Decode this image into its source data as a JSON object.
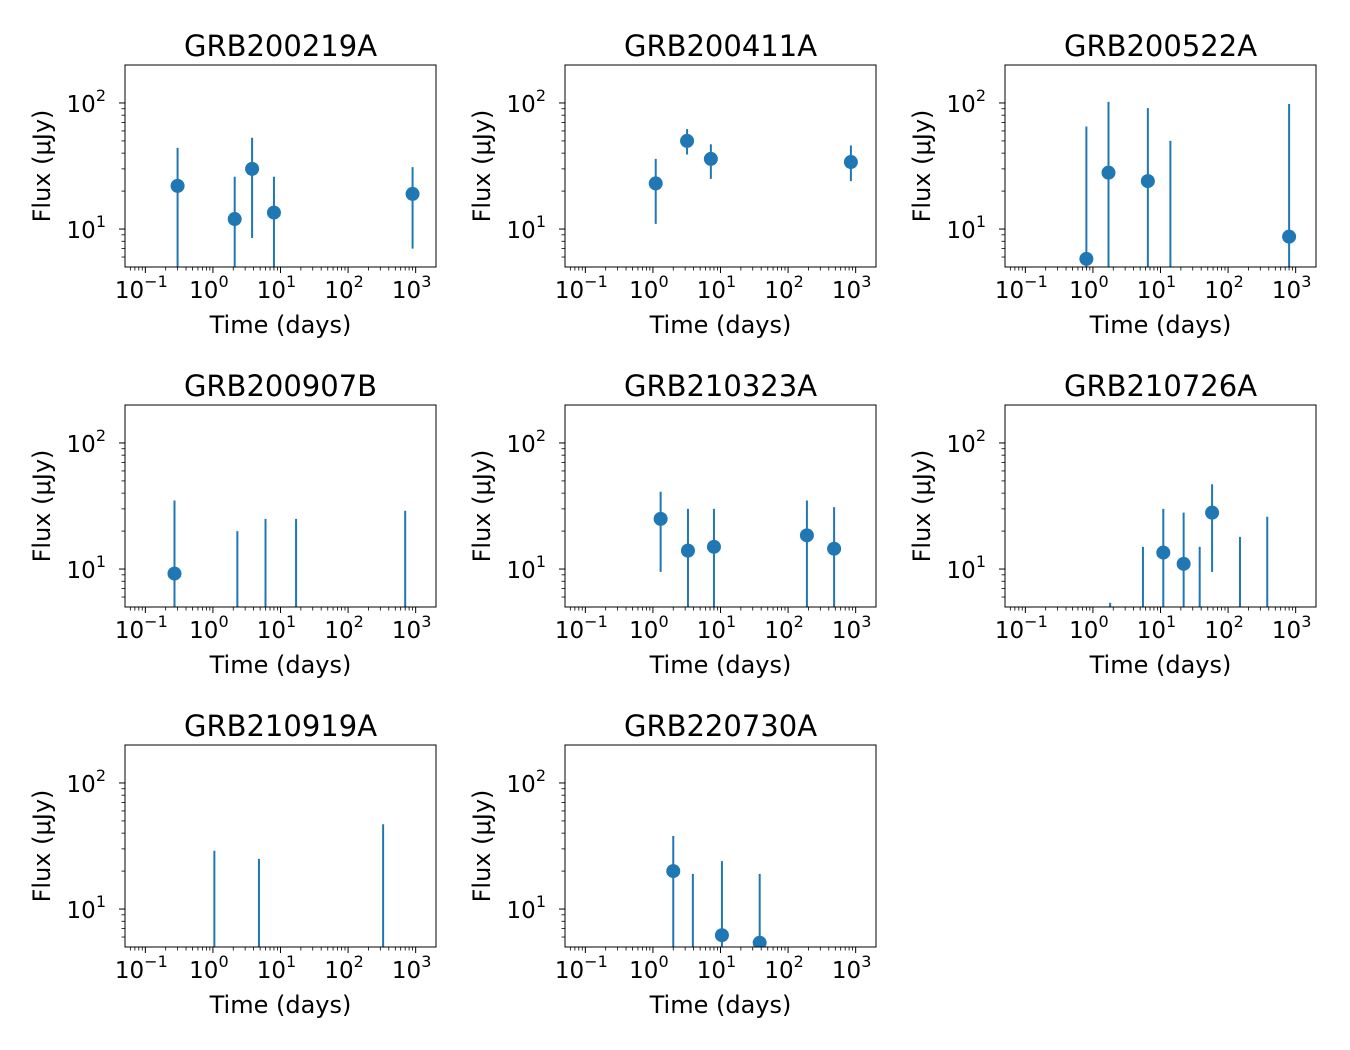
{
  "figure": {
    "series_color": "#1f77b4"
  },
  "chart_data": [
    {
      "type": "scatter",
      "title": "GRB200219A",
      "xlabel": "Time (days)",
      "ylabel": "Flux (μJy)",
      "xscale": "log",
      "yscale": "log",
      "xlim": [
        0.05,
        2000
      ],
      "ylim": [
        5,
        200
      ],
      "xticks": [
        {
          "base": "10",
          "exp": "−1"
        },
        {
          "base": "10",
          "exp": "0"
        },
        {
          "base": "10",
          "exp": "1"
        },
        {
          "base": "10",
          "exp": "2"
        },
        {
          "base": "10",
          "exp": "3"
        }
      ],
      "yticks": [
        {
          "base": "10",
          "exp": "1"
        },
        {
          "base": "10",
          "exp": "2"
        }
      ],
      "points": [
        {
          "x": 0.3,
          "y": 22,
          "ylo": 5,
          "yhi": 44
        },
        {
          "x": 2.1,
          "y": 12,
          "ylo": 5,
          "yhi": 26
        },
        {
          "x": 3.8,
          "y": 30,
          "ylo": 8.5,
          "yhi": 53
        },
        {
          "x": 8.0,
          "y": 13.5,
          "ylo": 5,
          "yhi": 26
        },
        {
          "x": 900,
          "y": 19,
          "ylo": 7,
          "yhi": 31
        }
      ]
    },
    {
      "type": "scatter",
      "title": "GRB200411A",
      "xlabel": "Time (days)",
      "ylabel": "Flux (μJy)",
      "xscale": "log",
      "yscale": "log",
      "xlim": [
        0.05,
        2000
      ],
      "ylim": [
        5,
        200
      ],
      "xticks": [
        {
          "base": "10",
          "exp": "−1"
        },
        {
          "base": "10",
          "exp": "0"
        },
        {
          "base": "10",
          "exp": "1"
        },
        {
          "base": "10",
          "exp": "2"
        },
        {
          "base": "10",
          "exp": "3"
        }
      ],
      "yticks": [
        {
          "base": "10",
          "exp": "1"
        },
        {
          "base": "10",
          "exp": "2"
        }
      ],
      "points": [
        {
          "x": 1.1,
          "y": 23,
          "ylo": 11,
          "yhi": 36
        },
        {
          "x": 3.2,
          "y": 50,
          "ylo": 39,
          "yhi": 62
        },
        {
          "x": 7.2,
          "y": 36,
          "ylo": 25,
          "yhi": 47
        },
        {
          "x": 850,
          "y": 34,
          "ylo": 24,
          "yhi": 46
        }
      ]
    },
    {
      "type": "scatter",
      "title": "GRB200522A",
      "xlabel": "Time (days)",
      "ylabel": "Flux (μJy)",
      "xscale": "log",
      "yscale": "log",
      "xlim": [
        0.05,
        2000
      ],
      "ylim": [
        5,
        200
      ],
      "xticks": [
        {
          "base": "10",
          "exp": "−1"
        },
        {
          "base": "10",
          "exp": "0"
        },
        {
          "base": "10",
          "exp": "1"
        },
        {
          "base": "10",
          "exp": "2"
        },
        {
          "base": "10",
          "exp": "3"
        }
      ],
      "yticks": [
        {
          "base": "10",
          "exp": "1"
        },
        {
          "base": "10",
          "exp": "2"
        }
      ],
      "points": [
        {
          "x": 0.8,
          "y": 5.8,
          "ylo": 5,
          "yhi": 65
        },
        {
          "x": 1.7,
          "y": 28,
          "ylo": 5,
          "yhi": 102
        },
        {
          "x": 6.5,
          "y": 24,
          "ylo": 5,
          "yhi": 91
        },
        {
          "x": 14,
          "ylo": 5,
          "yhi": 50
        },
        {
          "x": 800,
          "y": 8.7,
          "ylo": 5,
          "yhi": 98
        }
      ]
    },
    {
      "type": "scatter",
      "title": "GRB200907B",
      "xlabel": "Time (days)",
      "ylabel": "Flux (μJy)",
      "xscale": "log",
      "yscale": "log",
      "xlim": [
        0.05,
        2000
      ],
      "ylim": [
        5,
        200
      ],
      "xticks": [
        {
          "base": "10",
          "exp": "−1"
        },
        {
          "base": "10",
          "exp": "0"
        },
        {
          "base": "10",
          "exp": "1"
        },
        {
          "base": "10",
          "exp": "2"
        },
        {
          "base": "10",
          "exp": "3"
        }
      ],
      "yticks": [
        {
          "base": "10",
          "exp": "1"
        },
        {
          "base": "10",
          "exp": "2"
        }
      ],
      "points": [
        {
          "x": 0.27,
          "y": 9.2,
          "ylo": 5,
          "yhi": 35
        },
        {
          "x": 2.3,
          "ylo": 5,
          "yhi": 20
        },
        {
          "x": 6.0,
          "ylo": 5,
          "yhi": 25
        },
        {
          "x": 17,
          "ylo": 5,
          "yhi": 25
        },
        {
          "x": 700,
          "ylo": 5,
          "yhi": 29
        }
      ]
    },
    {
      "type": "scatter",
      "title": "GRB210323A",
      "xlabel": "Time (days)",
      "ylabel": "Flux (μJy)",
      "xscale": "log",
      "yscale": "log",
      "xlim": [
        0.05,
        2000
      ],
      "ylim": [
        5,
        200
      ],
      "xticks": [
        {
          "base": "10",
          "exp": "−1"
        },
        {
          "base": "10",
          "exp": "0"
        },
        {
          "base": "10",
          "exp": "1"
        },
        {
          "base": "10",
          "exp": "2"
        },
        {
          "base": "10",
          "exp": "3"
        }
      ],
      "yticks": [
        {
          "base": "10",
          "exp": "1"
        },
        {
          "base": "10",
          "exp": "2"
        }
      ],
      "points": [
        {
          "x": 1.3,
          "y": 25,
          "ylo": 9.5,
          "yhi": 41
        },
        {
          "x": 3.3,
          "y": 14,
          "ylo": 5,
          "yhi": 30
        },
        {
          "x": 8.0,
          "y": 15,
          "ylo": 5,
          "yhi": 30
        },
        {
          "x": 190,
          "y": 18.5,
          "ylo": 5,
          "yhi": 35
        },
        {
          "x": 480,
          "y": 14.5,
          "ylo": 5,
          "yhi": 31
        }
      ]
    },
    {
      "type": "scatter",
      "title": "GRB210726A",
      "xlabel": "Time (days)",
      "ylabel": "Flux (μJy)",
      "xscale": "log",
      "yscale": "log",
      "xlim": [
        0.05,
        2000
      ],
      "ylim": [
        5,
        200
      ],
      "xticks": [
        {
          "base": "10",
          "exp": "−1"
        },
        {
          "base": "10",
          "exp": "0"
        },
        {
          "base": "10",
          "exp": "1"
        },
        {
          "base": "10",
          "exp": "2"
        },
        {
          "base": "10",
          "exp": "3"
        }
      ],
      "yticks": [
        {
          "base": "10",
          "exp": "1"
        },
        {
          "base": "10",
          "exp": "2"
        }
      ],
      "points": [
        {
          "x": 1.8,
          "ylo": 5,
          "yhi": 5.4
        },
        {
          "x": 5.5,
          "ylo": 5,
          "yhi": 15
        },
        {
          "x": 11,
          "y": 13.5,
          "ylo": 5,
          "yhi": 30
        },
        {
          "x": 22,
          "y": 11,
          "ylo": 5,
          "yhi": 28
        },
        {
          "x": 38,
          "ylo": 5,
          "yhi": 15
        },
        {
          "x": 58,
          "y": 28,
          "ylo": 9.5,
          "yhi": 47
        },
        {
          "x": 150,
          "ylo": 5,
          "yhi": 18
        },
        {
          "x": 380,
          "ylo": 5,
          "yhi": 26
        }
      ]
    },
    {
      "type": "scatter",
      "title": "GRB210919A",
      "xlabel": "Time (days)",
      "ylabel": "Flux (μJy)",
      "xscale": "log",
      "yscale": "log",
      "xlim": [
        0.05,
        2000
      ],
      "ylim": [
        5,
        200
      ],
      "xticks": [
        {
          "base": "10",
          "exp": "−1"
        },
        {
          "base": "10",
          "exp": "0"
        },
        {
          "base": "10",
          "exp": "1"
        },
        {
          "base": "10",
          "exp": "2"
        },
        {
          "base": "10",
          "exp": "3"
        }
      ],
      "yticks": [
        {
          "base": "10",
          "exp": "1"
        },
        {
          "base": "10",
          "exp": "2"
        }
      ],
      "points": [
        {
          "x": 1.05,
          "ylo": 5,
          "yhi": 29
        },
        {
          "x": 4.8,
          "ylo": 5,
          "yhi": 25
        },
        {
          "x": 330,
          "ylo": 5,
          "yhi": 47
        }
      ]
    },
    {
      "type": "scatter",
      "title": "GRB220730A",
      "xlabel": "Time (days)",
      "ylabel": "Flux (μJy)",
      "xscale": "log",
      "yscale": "log",
      "xlim": [
        0.05,
        2000
      ],
      "ylim": [
        5,
        200
      ],
      "xticks": [
        {
          "base": "10",
          "exp": "−1"
        },
        {
          "base": "10",
          "exp": "0"
        },
        {
          "base": "10",
          "exp": "1"
        },
        {
          "base": "10",
          "exp": "2"
        },
        {
          "base": "10",
          "exp": "3"
        }
      ],
      "yticks": [
        {
          "base": "10",
          "exp": "1"
        },
        {
          "base": "10",
          "exp": "2"
        }
      ],
      "points": [
        {
          "x": 2.0,
          "y": 20,
          "ylo": 5,
          "yhi": 38
        },
        {
          "x": 3.9,
          "ylo": 5,
          "yhi": 19
        },
        {
          "x": 10.5,
          "y": 6.2,
          "ylo": 5,
          "yhi": 24
        },
        {
          "x": 38,
          "y": 5.4,
          "ylo": 5,
          "yhi": 19
        }
      ]
    }
  ]
}
